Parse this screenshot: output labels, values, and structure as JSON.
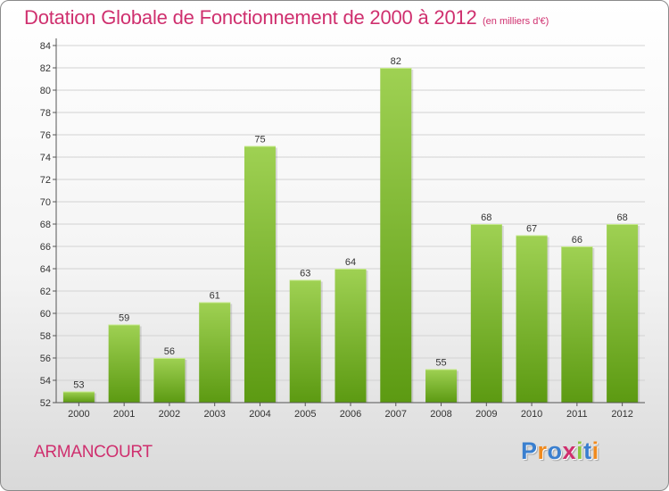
{
  "header": {
    "title": "Dotation Globale de Fonctionnement de 2000 à 2012",
    "unit": "(en milliers d'€)"
  },
  "footer": {
    "commune": "ARMANCOURT",
    "logo": {
      "text": "Proxiti",
      "letters": [
        {
          "char": "P",
          "color": "#3a7fcf"
        },
        {
          "char": "r",
          "color": "#f08a1e"
        },
        {
          "char": "o",
          "color": "#3a7fcf"
        },
        {
          "char": "x",
          "color": "#cf2f6e"
        },
        {
          "char": "i",
          "color": "#8cc63f"
        },
        {
          "char": "t",
          "color": "#3a7fcf"
        },
        {
          "char": "i",
          "color": "#f08a1e"
        }
      ]
    }
  },
  "colors": {
    "title": "#cf2f6e",
    "bar_light": "#9fd153",
    "bar_dark": "#5c9a12",
    "grid": "#d2d2d2",
    "axis": "#555555",
    "text": "#333333"
  },
  "chart_data": {
    "type": "bar",
    "title": "Dotation Globale de Fonctionnement de 2000 à 2012",
    "subtitle": "(en milliers d'€)",
    "xlabel": "",
    "ylabel": "",
    "categories": [
      "2000",
      "2001",
      "2002",
      "2003",
      "2004",
      "2005",
      "2006",
      "2007",
      "2008",
      "2009",
      "2010",
      "2011",
      "2012"
    ],
    "values": [
      53,
      59,
      56,
      61,
      75,
      63,
      64,
      82,
      55,
      68,
      67,
      66,
      68
    ],
    "ylim": [
      52,
      84
    ],
    "ytick_step": 2,
    "grid": true,
    "legend": "none"
  }
}
